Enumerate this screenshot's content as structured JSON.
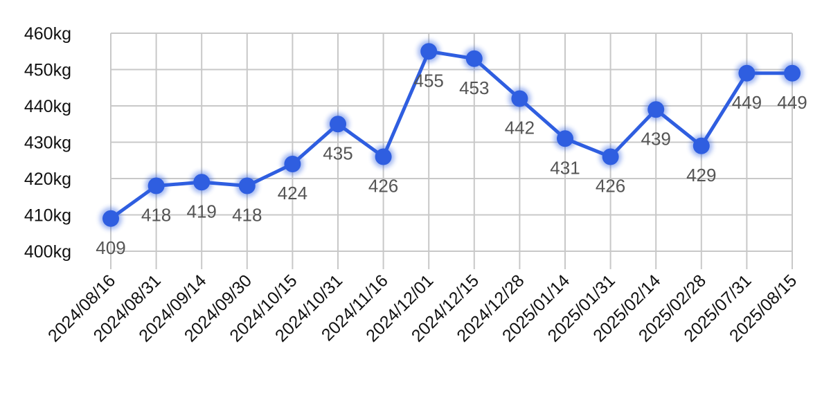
{
  "chart_data": {
    "type": "line",
    "title": "",
    "xlabel": "",
    "ylabel": "",
    "categories": [
      "2024/08/16",
      "2024/08/31",
      "2024/09/14",
      "2024/09/30",
      "2024/10/15",
      "2024/10/31",
      "2024/11/16",
      "2024/12/01",
      "2024/12/15",
      "2024/12/28",
      "2025/01/14",
      "2025/01/31",
      "2025/02/14",
      "2025/02/28",
      "2025/07/31",
      "2025/08/15"
    ],
    "series": [
      {
        "values": [
          409,
          418,
          419,
          418,
          424,
          435,
          426,
          455,
          453,
          442,
          431,
          426,
          439,
          429,
          449,
          449
        ],
        "color": "#2f5ee0"
      }
    ],
    "data_labels": [
      "409",
      "418",
      "419",
      "418",
      "424",
      "435",
      "426",
      "455",
      "453",
      "442",
      "431",
      "426",
      "439",
      "429",
      "449",
      "449"
    ],
    "ylim": [
      400,
      460
    ],
    "yticks": [
      400,
      410,
      420,
      430,
      440,
      450,
      460
    ],
    "ytick_labels": [
      "400kg",
      "410kg",
      "420kg",
      "430kg",
      "440kg",
      "450kg",
      "460kg"
    ],
    "grid": true,
    "legend": "none"
  }
}
